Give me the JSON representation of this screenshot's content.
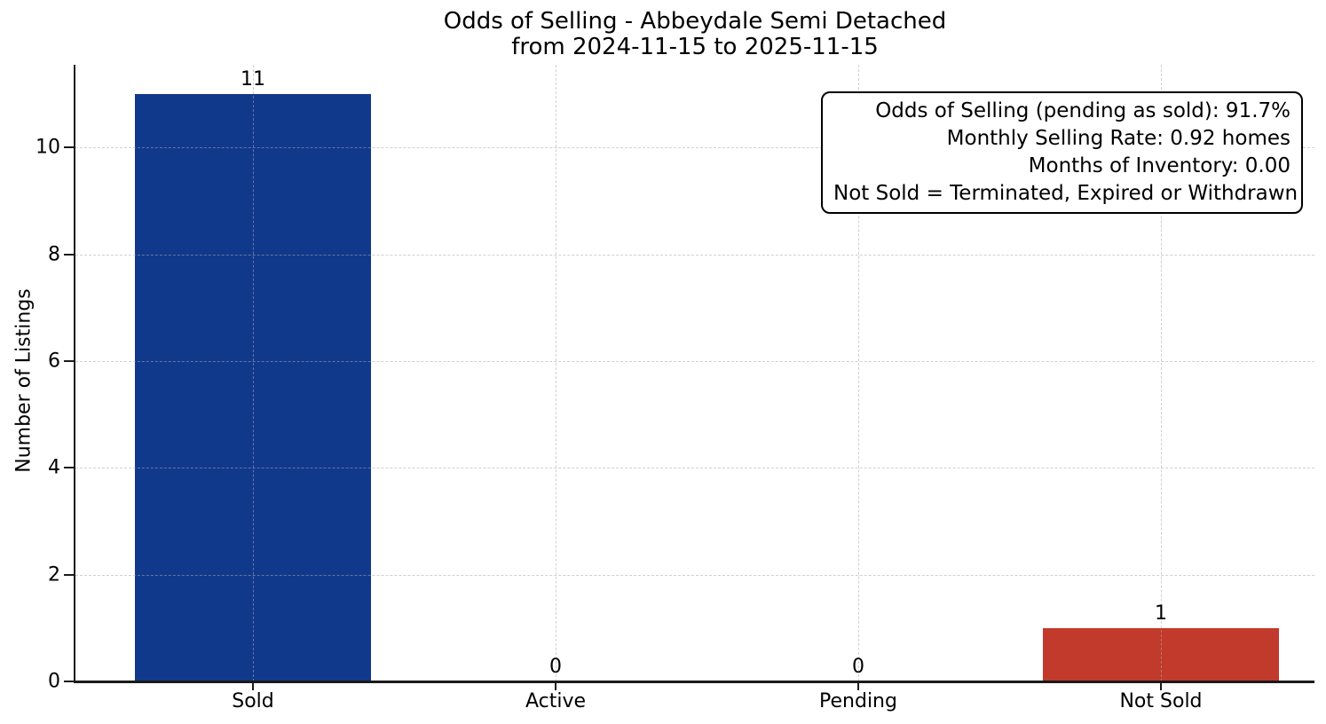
{
  "chart_data": {
    "type": "bar",
    "title": "Odds of Selling - Abbeydale Semi Detached from 2024-11-15 to 2025-11-15",
    "title_line1": "Odds of Selling - Abbeydale Semi Detached",
    "title_line2": "from 2024-11-15 to 2025-11-15",
    "categories": [
      "Sold",
      "Active",
      "Pending",
      "Not Sold"
    ],
    "values": [
      11,
      0,
      0,
      1
    ],
    "bar_colors": [
      "#10398c",
      null,
      null,
      "#c23a2b"
    ],
    "value_labels": [
      "11",
      "0",
      "0",
      "1"
    ],
    "xlabel": "",
    "ylabel": "Number of Listings",
    "yticks": [
      0,
      2,
      4,
      6,
      8,
      10
    ],
    "ylim": [
      0,
      11.55
    ],
    "grid": true,
    "legend": null,
    "annotation_lines": [
      "Odds of Selling (pending as sold): 91.7%",
      "Monthly Selling Rate: 0.92 homes",
      "Months of Inventory: 0.00",
      "Not Sold = Terminated, Expired or Withdrawn"
    ]
  }
}
